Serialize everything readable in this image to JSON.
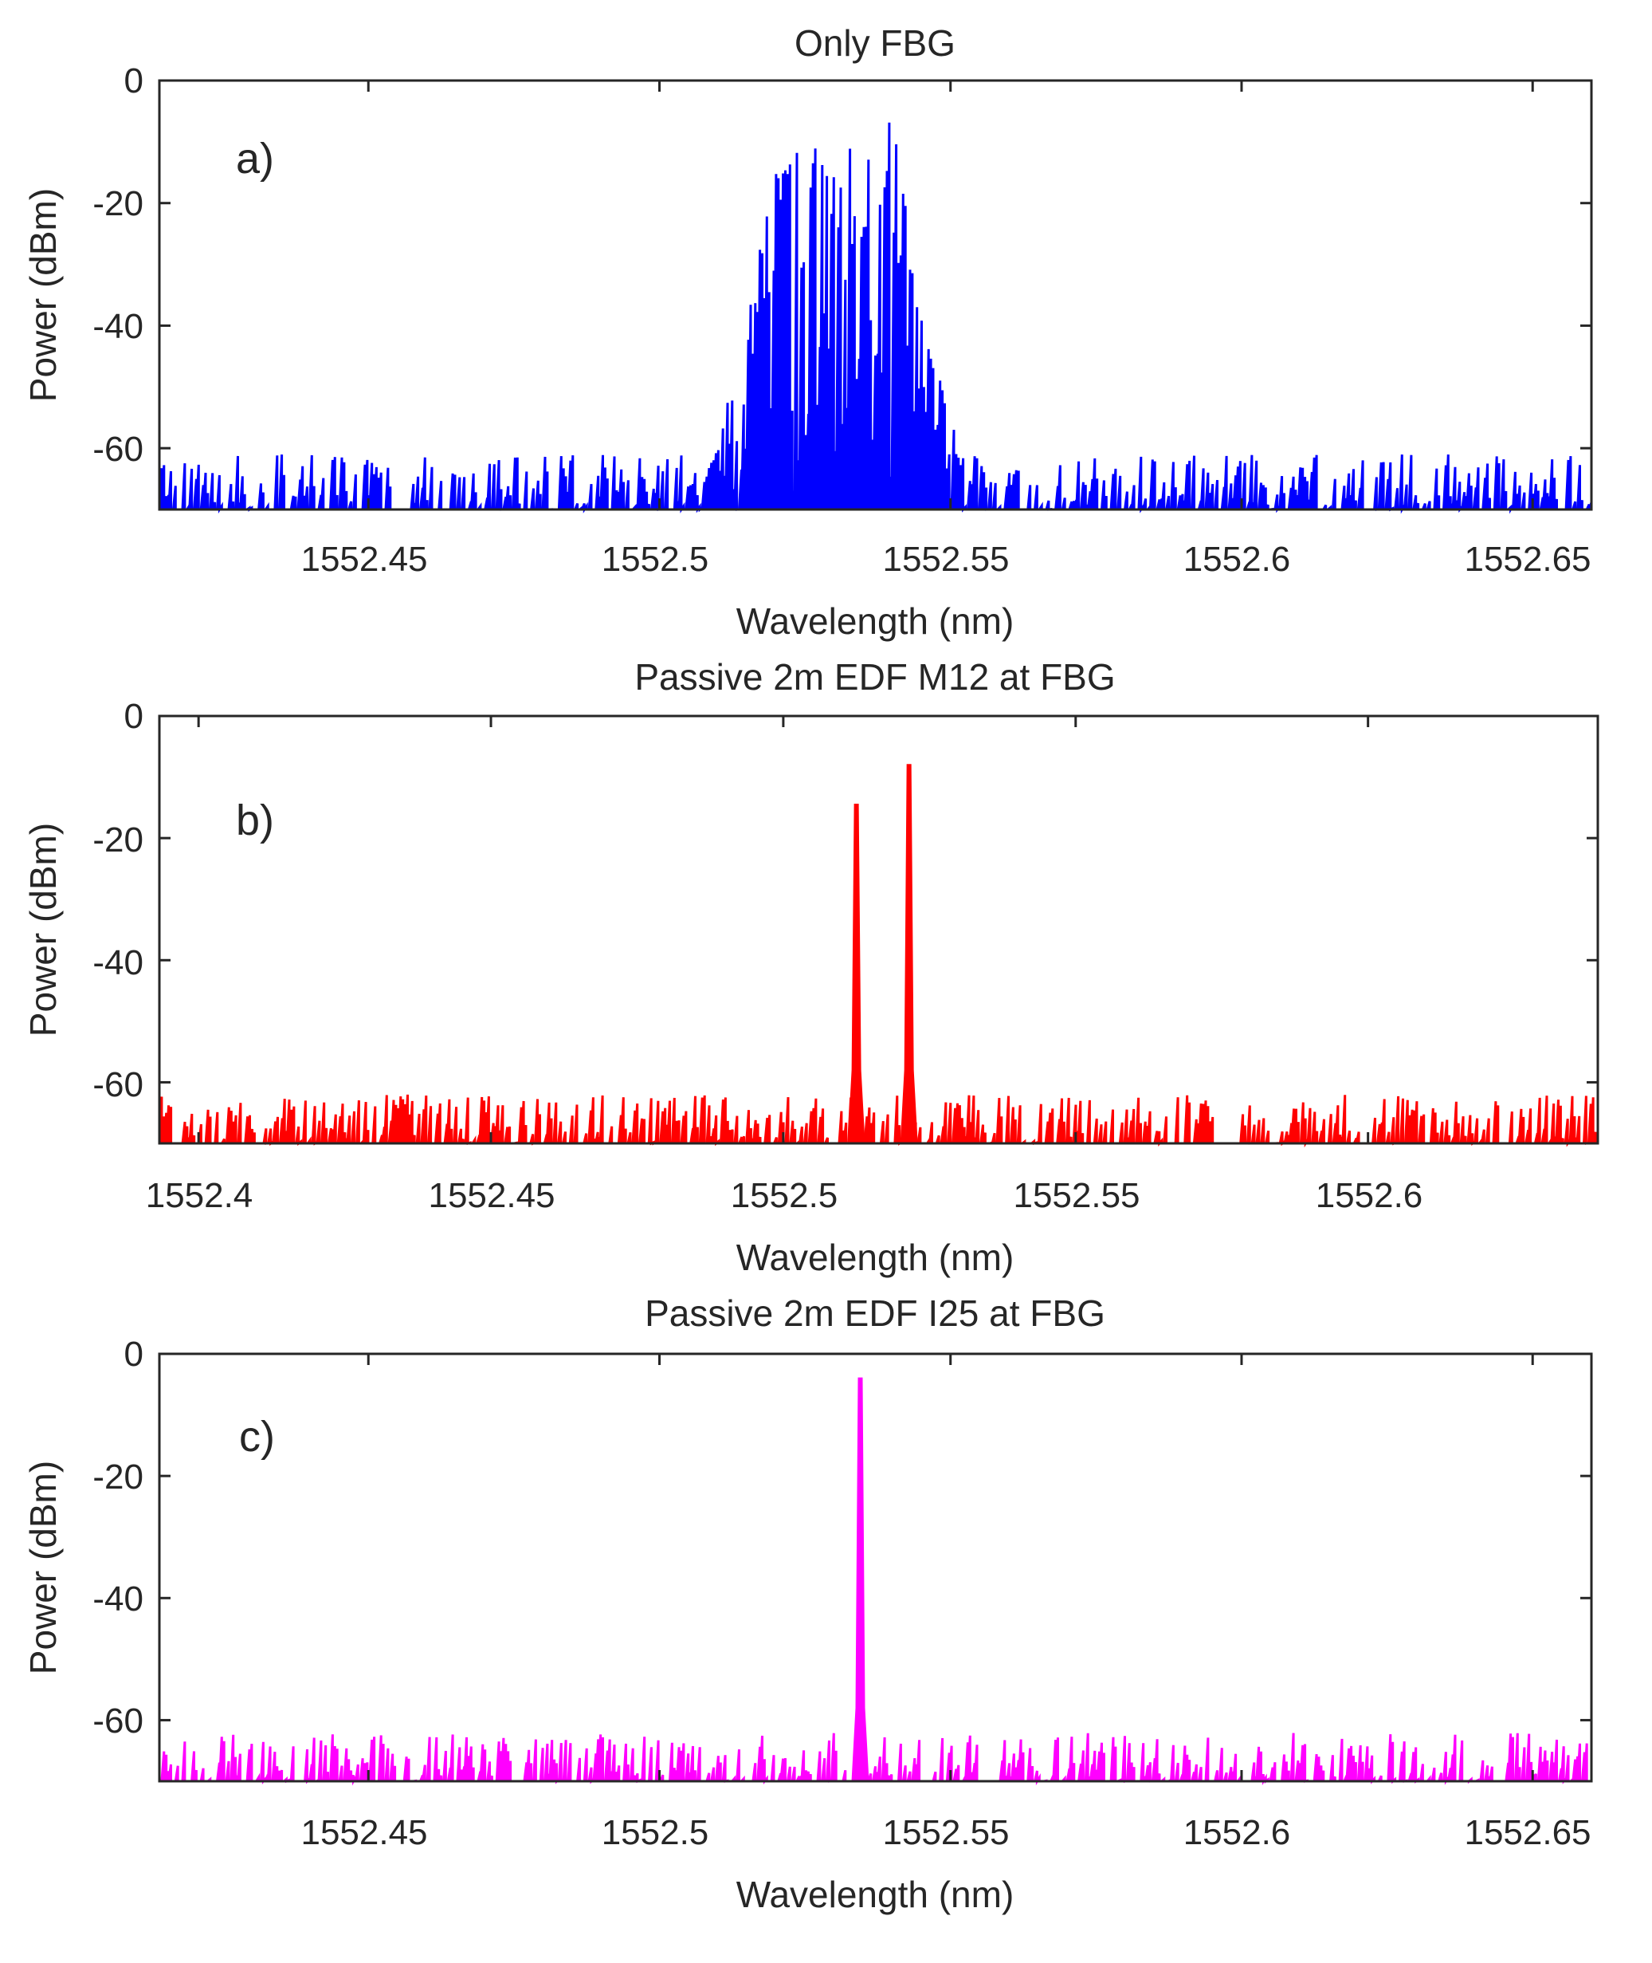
{
  "chart_data": [
    {
      "type": "line",
      "title": "Only FBG",
      "panel_label": "a)",
      "xlabel": "Wavelength (nm)",
      "ylabel": "Power (dBm)",
      "xlim": [
        1552.4141,
        1552.6601
      ],
      "ylim": [
        -70,
        0
      ],
      "x_ticks": [
        1552.45,
        1552.5,
        1552.55,
        1552.6,
        1552.65
      ],
      "x_tick_labels": [
        "1552.45",
        "1552.5",
        "1552.55",
        "1552.6",
        "1552.65"
      ],
      "y_ticks": [
        0,
        -20,
        -40,
        -60
      ],
      "y_tick_labels": [
        "0",
        "-20",
        "-40",
        "-60"
      ],
      "color": "#0000ff",
      "series": [
        {
          "name": "Only FBG",
          "noise_floor_dbm": -70,
          "noise_peak_range_dbm": [
            -70,
            -61
          ],
          "signal_band_nm": [
            1552.51,
            1552.55
          ],
          "envelope": {
            "x": [
              1552.505,
              1552.51,
              1552.515,
              1552.52,
              1552.525,
              1552.53,
              1552.535,
              1552.54,
              1552.545,
              1552.55,
              1552.555
            ],
            "y": [
              -70,
              -60,
              -38,
              -15,
              -10,
              -11,
              -11,
              -6,
              -38,
              -55,
              -70
            ]
          }
        }
      ]
    },
    {
      "type": "line",
      "title": "Passive 2m EDF M12 at FBG",
      "panel_label": "b)",
      "xlabel": "Wavelength (nm)",
      "ylabel": "Power (dBm)",
      "xlim": [
        1552.3933,
        1552.6393
      ],
      "ylim": [
        -70,
        0
      ],
      "x_ticks": [
        1552.4,
        1552.45,
        1552.5,
        1552.55,
        1552.6
      ],
      "x_tick_labels": [
        "1552.4",
        "1552.45",
        "1552.5",
        "1552.55",
        "1552.6"
      ],
      "y_ticks": [
        0,
        -20,
        -40,
        -60
      ],
      "y_tick_labels": [
        "0",
        "-20",
        "-40",
        "-60"
      ],
      "color": "#ff0000",
      "series": [
        {
          "name": "Passive 2m EDF M12 at FBG",
          "noise_floor_dbm": -70,
          "noise_peak_range_dbm": [
            -70,
            -62
          ],
          "peaks": [
            {
              "x": 1552.5125,
              "y": -14.5
            },
            {
              "x": 1552.5215,
              "y": -8
            }
          ]
        }
      ]
    },
    {
      "type": "line",
      "title": "Passive 2m EDF I25 at FBG",
      "panel_label": "c)",
      "xlabel": "Wavelength (nm)",
      "ylabel": "Power (dBm)",
      "xlim": [
        1552.4141,
        1552.6601
      ],
      "ylim": [
        -70,
        0
      ],
      "x_ticks": [
        1552.45,
        1552.5,
        1552.55,
        1552.6,
        1552.65
      ],
      "x_tick_labels": [
        "1552.45",
        "1552.5",
        "1552.55",
        "1552.6",
        "1552.65"
      ],
      "y_ticks": [
        0,
        -20,
        -40,
        -60
      ],
      "y_tick_labels": [
        "0",
        "-20",
        "-40",
        "-60"
      ],
      "color": "#ff00ff",
      "series": [
        {
          "name": "Passive 2m EDF I25 at FBG",
          "noise_floor_dbm": -70,
          "noise_peak_range_dbm": [
            -70,
            -62
          ],
          "peaks": [
            {
              "x": 1552.5345,
              "y": -4
            }
          ]
        }
      ]
    }
  ]
}
